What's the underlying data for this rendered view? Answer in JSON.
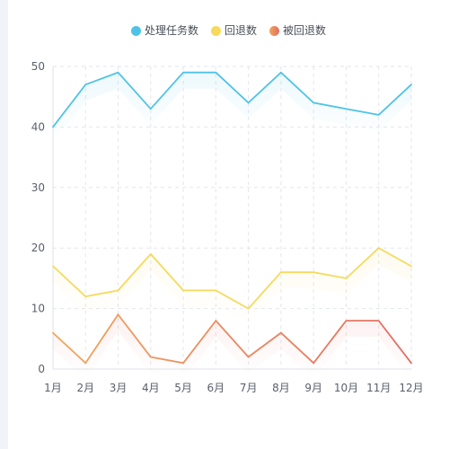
{
  "chart_data": {
    "type": "line",
    "categories": [
      "1月",
      "2月",
      "3月",
      "4月",
      "5月",
      "6月",
      "7月",
      "8月",
      "9月",
      "10月",
      "11月",
      "12月"
    ],
    "series": [
      {
        "name": "处理任务数",
        "color": "#4ec3e8",
        "values": [
          40,
          47,
          49,
          43,
          49,
          49,
          44,
          49,
          44,
          43,
          42,
          47
        ]
      },
      {
        "name": "回退数",
        "color": "#f7d95c",
        "values": [
          17,
          12,
          13,
          19,
          13,
          13,
          10,
          16,
          16,
          15,
          20,
          17
        ]
      },
      {
        "name": "被回退数",
        "gradient": [
          "#f2a65a",
          "#e36c63"
        ],
        "color": "#ea8a5e",
        "values": [
          6,
          1,
          9,
          2,
          1,
          8,
          2,
          6,
          1,
          8,
          8,
          1
        ]
      }
    ],
    "ylim": [
      0,
      50
    ],
    "yticks": [
      0,
      10,
      20,
      30,
      40,
      50
    ],
    "grid": true,
    "grid_style": "dashed",
    "legend_position": "top-center",
    "title": "",
    "xlabel": "",
    "ylabel": ""
  }
}
